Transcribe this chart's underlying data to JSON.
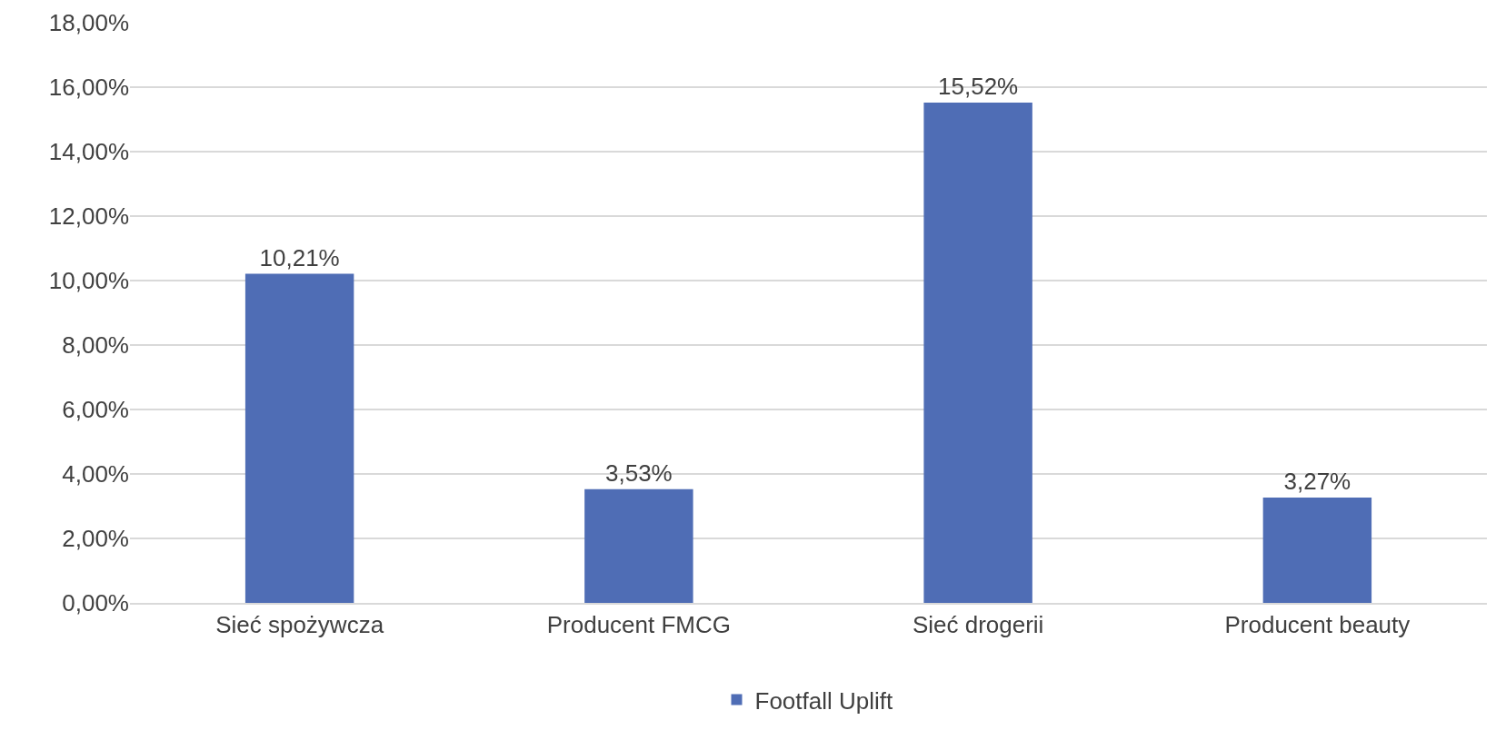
{
  "chart_data": {
    "type": "bar",
    "categories": [
      "Sieć spożywcza",
      "Producent FMCG",
      "Sieć drogerii",
      "Producent beauty"
    ],
    "series": [
      {
        "name": "Footfall Uplift",
        "color": "#4f6db5",
        "values": [
          10.21,
          3.53,
          15.52,
          3.27
        ],
        "value_labels": [
          "10,21%",
          "3,53%",
          "15,52%",
          "3,27%"
        ]
      }
    ],
    "ylim": [
      0,
      18
    ],
    "yticks": [
      {
        "value": 0,
        "label": "0,00%"
      },
      {
        "value": 2,
        "label": "2,00%"
      },
      {
        "value": 4,
        "label": "4,00%"
      },
      {
        "value": 6,
        "label": "6,00%"
      },
      {
        "value": 8,
        "label": "8,00%"
      },
      {
        "value": 10,
        "label": "10,00%"
      },
      {
        "value": 12,
        "label": "12,00%"
      },
      {
        "value": 14,
        "label": "14,00%"
      },
      {
        "value": 16,
        "label": "16,00%"
      },
      {
        "value": 18,
        "label": "18,00%"
      }
    ],
    "grid": "y",
    "legend": "bottom"
  }
}
